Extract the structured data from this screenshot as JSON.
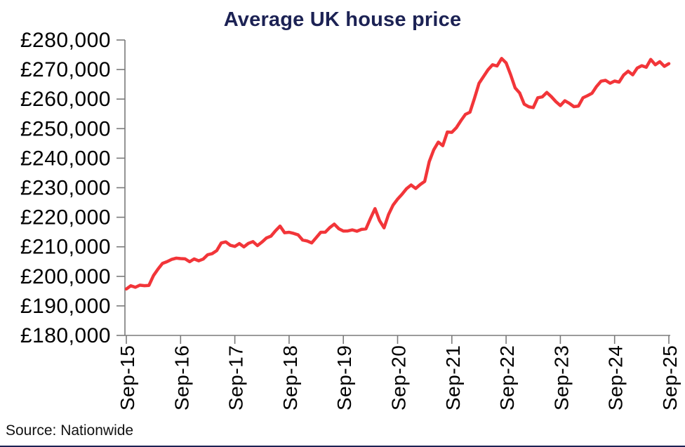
{
  "page": {
    "source_note": "Source: Nationwide"
  },
  "chart": {
    "title": "Average UK house price",
    "colors": {
      "line": "#f23539",
      "title": "#1c2254",
      "axis": "#7a7a7a",
      "tick_labels": "#000000",
      "bottom_rule": "#1c2254"
    }
  },
  "chart_data": {
    "type": "line",
    "title": "Average UK house price",
    "xlabel": "",
    "ylabel": "",
    "ylim": [
      180000,
      280000
    ],
    "y_tick_step": 10000,
    "grid": false,
    "legend_position": "none",
    "x_freq": "monthly",
    "x_start": "Sep-15",
    "x_end": "Sep-25",
    "x_tick_labels": [
      "Sep-15",
      "Sep-16",
      "Sep-17",
      "Sep-18",
      "Sep-19",
      "Sep-20",
      "Sep-21",
      "Sep-22",
      "Sep-23",
      "Sep-24",
      "Sep-25"
    ],
    "y_tick_labels": [
      "£180,000",
      "£190,000",
      "£200,000",
      "£210,000",
      "£220,000",
      "£230,000",
      "£240,000",
      "£250,000",
      "£260,000",
      "£270,000",
      "£280,000"
    ],
    "source": "Source: Nationwide",
    "series": [
      {
        "name": "Average UK house price (GBP)",
        "values": [
          195733,
          196807,
          196305,
          196999,
          196829,
          196930,
          200251,
          202436,
          204368,
          204968,
          205715,
          206145,
          206015,
          205904,
          204947,
          205898,
          205240,
          205846,
          207308,
          207699,
          208711,
          211301,
          211671,
          210495,
          210116,
          211085,
          209988,
          211156,
          211756,
          210402,
          211625,
          213000,
          213618,
          215444,
          217010,
          214745,
          214922,
          214534,
          214044,
          212281,
          211966,
          211304,
          213102,
          214920,
          214946,
          216515,
          217663,
          216096,
          215352,
          215368,
          215734,
          215282,
          215897,
          216092,
          219583,
          222915,
          218902,
          216403,
          220936,
          224123,
          226129,
          227826,
          229721,
          230920,
          229748,
          231061,
          232134,
          238831,
          242832,
          245432,
          244229,
          248857,
          248742,
          250311,
          252687,
          254822,
          255556,
          260230,
          265312,
          267620,
          269914,
          271613,
          271209,
          273751,
          272259,
          268282,
          263788,
          262068,
          258297,
          257406,
          257122,
          260441,
          260736,
          262239,
          260828,
          259153,
          257808,
          259423,
          258557,
          257443,
          257656,
          260420,
          261142,
          261962,
          264249,
          266064,
          266334,
          265375,
          266094,
          265738,
          268144,
          269426,
          268213,
          270493,
          271316,
          270752,
          273427,
          271619,
          272664,
          271079,
          271995
        ]
      }
    ]
  }
}
